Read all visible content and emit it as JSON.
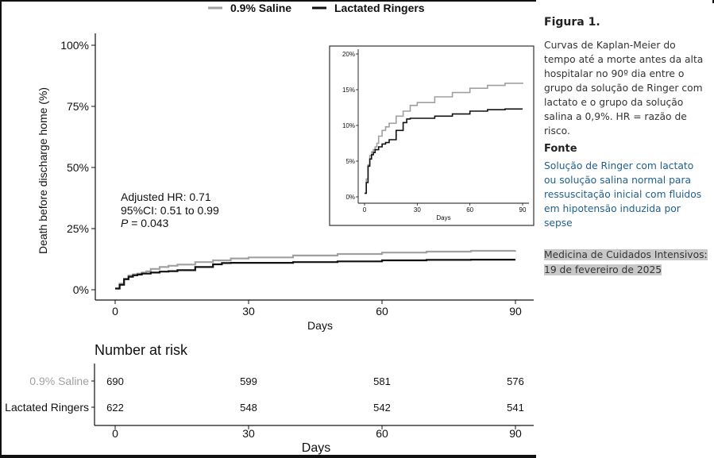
{
  "sidebar": {
    "figure_label": "Figura 1.",
    "caption": "Curvas de Kaplan-Meier do tempo até a morte antes da alta hospitalar no 90º dia entre o grupo da solução de Ringer com lactato e o grupo da solução salina a 0,9%. HR = razão de risco.",
    "source_heading": "Fonte",
    "source_link": "Solução de Ringer com lactato ou solução salina normal para ressuscitação inicial com fluidos em hipotensão induzida por sepse",
    "journal_line1": "Medicina de Cuidados Intensivos:",
    "journal_line2": "19 de fevereiro de 2025"
  },
  "colors": {
    "saline": "#a0a0a0",
    "ringers": "#111111",
    "link": "#1f5f8b"
  },
  "chart_data": [
    {
      "type": "line",
      "xlabel": "Days",
      "ylabel": "Death before discharge home (%)",
      "xlim": [
        0,
        90
      ],
      "ylim": [
        0,
        100
      ],
      "xticks": [
        "0",
        "30",
        "60",
        "90"
      ],
      "yticks": [
        "0%",
        "25%",
        "50%",
        "75%",
        "100%"
      ],
      "legend_position": "top",
      "annotation": {
        "line1": "Adjusted HR: 0.71",
        "line2": "95%CI: 0.51 to 0.99",
        "line3_label": "P",
        "line3_value": " = 0.043"
      },
      "series": [
        {
          "name": "0.9% Saline",
          "x": [
            0,
            1,
            2,
            3,
            4,
            5,
            6,
            7,
            8,
            10,
            12,
            14,
            18,
            22,
            26,
            30,
            40,
            50,
            60,
            70,
            80,
            90
          ],
          "y": [
            0.5,
            2.5,
            4.5,
            5.8,
            6.3,
            6.6,
            7.0,
            7.5,
            8.5,
            9.3,
            9.8,
            10.3,
            11.3,
            12.0,
            12.8,
            13.2,
            14.0,
            14.6,
            15.2,
            15.6,
            15.9,
            16.0
          ]
        },
        {
          "name": "Lactated Ringers",
          "x": [
            0,
            1,
            2,
            3,
            4,
            5,
            6,
            8,
            10,
            12,
            14,
            18,
            22,
            24,
            26,
            30,
            40,
            50,
            60,
            70,
            80,
            90
          ],
          "y": [
            0.5,
            2.0,
            4.3,
            5.3,
            5.9,
            6.2,
            6.6,
            7.0,
            7.4,
            7.6,
            8.0,
            9.3,
            10.4,
            10.9,
            11.0,
            11.0,
            11.3,
            11.6,
            12.0,
            12.2,
            12.3,
            12.3
          ]
        }
      ]
    },
    {
      "type": "line",
      "xlabel": "Days",
      "xlim": [
        0,
        90
      ],
      "ylim": [
        0,
        20
      ],
      "xticks": [
        "0",
        "30",
        "60",
        "90"
      ],
      "yticks": [
        "0%",
        "5%",
        "10%",
        "15%",
        "20%"
      ],
      "series": [
        {
          "name": "0.9% Saline",
          "x": [
            0,
            1,
            2,
            3,
            4,
            5,
            6,
            7,
            8,
            10,
            12,
            14,
            18,
            22,
            26,
            30,
            40,
            50,
            60,
            70,
            80,
            90
          ],
          "y": [
            0.5,
            2.5,
            4.5,
            5.8,
            6.3,
            6.6,
            7.0,
            7.5,
            8.5,
            9.3,
            9.8,
            10.3,
            11.3,
            12.0,
            12.8,
            13.2,
            14.0,
            14.6,
            15.2,
            15.6,
            15.9,
            16.0
          ]
        },
        {
          "name": "Lactated Ringers",
          "x": [
            0,
            1,
            2,
            3,
            4,
            5,
            6,
            8,
            10,
            12,
            14,
            18,
            22,
            24,
            26,
            30,
            40,
            50,
            60,
            70,
            80,
            90
          ],
          "y": [
            0.5,
            2.0,
            4.3,
            5.3,
            5.9,
            6.2,
            6.6,
            7.0,
            7.4,
            7.6,
            8.0,
            9.3,
            10.4,
            10.9,
            11.0,
            11.0,
            11.3,
            11.6,
            12.0,
            12.2,
            12.3,
            12.3
          ]
        }
      ]
    },
    {
      "type": "table",
      "title": "Number at risk",
      "xlabel": "Days",
      "xticks": [
        "0",
        "30",
        "60",
        "90"
      ],
      "rows": [
        {
          "name": "0.9% Saline",
          "values": [
            "690",
            "599",
            "581",
            "576"
          ]
        },
        {
          "name": "Lactated Ringers",
          "values": [
            "622",
            "548",
            "542",
            "541"
          ]
        }
      ]
    }
  ]
}
